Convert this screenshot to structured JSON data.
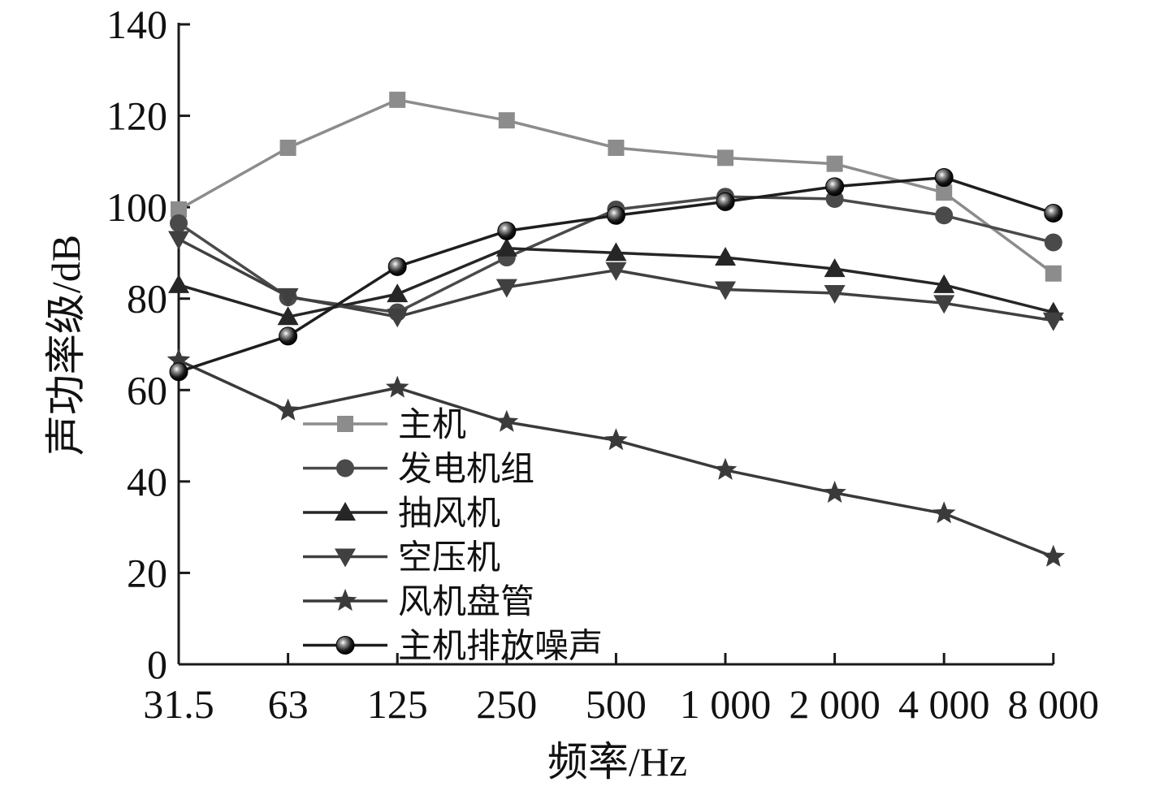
{
  "chart_data": {
    "type": "line",
    "categories": [
      "31.5",
      "63",
      "125",
      "250",
      "500",
      "1 000",
      "2 000",
      "4 000",
      "8 000"
    ],
    "ylim": [
      0,
      140
    ],
    "yticks": [
      0,
      20,
      40,
      60,
      80,
      100,
      120,
      140
    ],
    "xlabel": "频率/Hz",
    "ylabel": "声功率级/dB",
    "legend_position": "bottom-left",
    "grid": false,
    "series": [
      {
        "name": "主机",
        "marker": "square",
        "color": "#8c8c8c",
        "values": [
          99.5,
          113,
          123.5,
          119,
          113,
          110.8,
          109.5,
          103.2,
          85.5
        ]
      },
      {
        "name": "发电机组",
        "marker": "circle",
        "color": "#4a4a4a",
        "values": [
          96.5,
          80.3,
          77,
          89,
          99.5,
          102.3,
          101.8,
          98.2,
          92.3
        ]
      },
      {
        "name": "抽风机",
        "marker": "triangle-up",
        "color": "#262626",
        "values": [
          83,
          76,
          81,
          91,
          90,
          89,
          86.5,
          83,
          77
        ]
      },
      {
        "name": "空压机",
        "marker": "triangle-down",
        "color": "#404040",
        "values": [
          93,
          80.5,
          76,
          82.5,
          86.2,
          82,
          81.2,
          79,
          75.2
        ]
      },
      {
        "name": "风机盘管",
        "marker": "star",
        "color": "#3a3a3a",
        "values": [
          66.5,
          55.5,
          60.5,
          53,
          49,
          42.5,
          37.5,
          33,
          23.5
        ]
      },
      {
        "name": "主机排放噪声",
        "marker": "sphere",
        "color": "#1e1e1e",
        "values": [
          64,
          71.8,
          87,
          94.8,
          98.2,
          101.2,
          104.5,
          106.5,
          98.7
        ]
      }
    ]
  }
}
